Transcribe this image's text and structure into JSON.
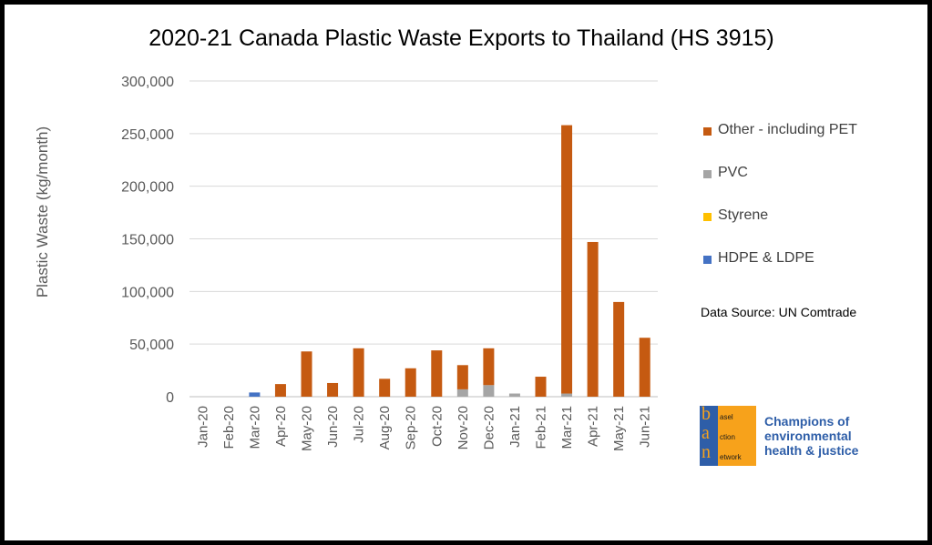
{
  "chart_data": {
    "type": "bar",
    "stacked": true,
    "title": "2020-21 Canada Plastic Waste Exports to Thailand (HS 3915)",
    "ylabel": "Plastic Waste (kg/month)",
    "xlabel": "",
    "ylim": [
      0,
      300000
    ],
    "yticks": [
      "0",
      "50,000",
      "100,000",
      "150,000",
      "200,000",
      "250,000",
      "300,000"
    ],
    "grid": true,
    "legend_position": "right",
    "categories": [
      "Jan-20",
      "Feb-20",
      "Mar-20",
      "Apr-20",
      "May-20",
      "Jun-20",
      "Jul-20",
      "Aug-20",
      "Sep-20",
      "Oct-20",
      "Nov-20",
      "Dec-20",
      "Jan-21",
      "Feb-21",
      "Mar-21",
      "Apr-21",
      "May-21",
      "Jun-21"
    ],
    "series": [
      {
        "name": "HDPE & LDPE",
        "color": "#4472c4",
        "values": [
          0,
          0,
          4000,
          0,
          0,
          0,
          0,
          0,
          0,
          0,
          0,
          0,
          0,
          0,
          0,
          0,
          0,
          0
        ]
      },
      {
        "name": "Styrene",
        "color": "#ffc000",
        "values": [
          0,
          0,
          0,
          0,
          0,
          0,
          0,
          0,
          0,
          0,
          0,
          0,
          0,
          0,
          0,
          0,
          0,
          0
        ]
      },
      {
        "name": "PVC",
        "color": "#a5a5a5",
        "values": [
          0,
          0,
          0,
          0,
          0,
          0,
          0,
          0,
          0,
          0,
          7000,
          11000,
          3000,
          0,
          3000,
          0,
          0,
          0
        ]
      },
      {
        "name": "Other - including PET",
        "color": "#c55a11",
        "values": [
          0,
          0,
          0,
          12000,
          43000,
          13000,
          46000,
          17000,
          27000,
          44000,
          23000,
          35000,
          0,
          19000,
          255000,
          147000,
          90000,
          56000
        ]
      }
    ]
  },
  "source_text": "Data Source: UN Comtrade",
  "logo": {
    "letters": [
      "b",
      "a",
      "n"
    ],
    "words": [
      "asel",
      "ction",
      "etwork"
    ],
    "tagline": [
      "Champions of",
      "environmental",
      "health & justice"
    ]
  }
}
